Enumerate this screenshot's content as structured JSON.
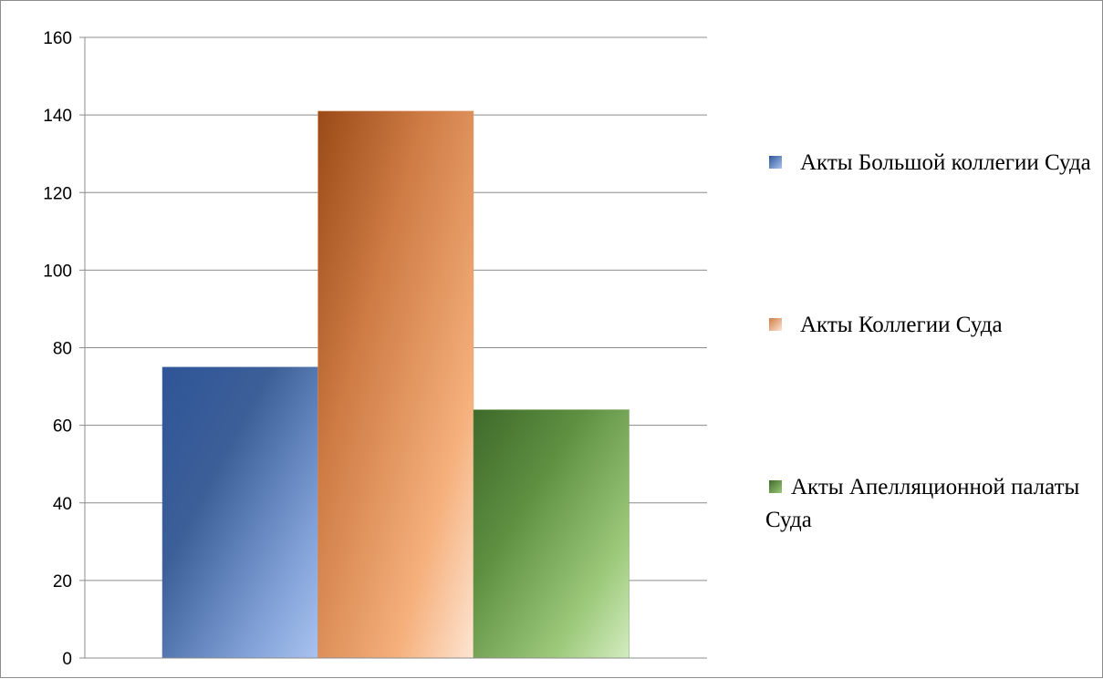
{
  "chart_data": {
    "type": "bar",
    "title": "",
    "xlabel": "",
    "ylabel": "",
    "ylim": [
      0,
      160
    ],
    "yticks": [
      0,
      20,
      40,
      60,
      80,
      100,
      120,
      140,
      160
    ],
    "ytick_labels": [
      "0",
      "20",
      "40",
      "60",
      "80",
      "100",
      "120",
      "140",
      "160"
    ],
    "grid": true,
    "legend_position": "right",
    "categories": [
      ""
    ],
    "series": [
      {
        "name": "Акты Большой коллегии Суда",
        "values": [
          75
        ],
        "color": "#4a6fb0"
      },
      {
        "name": "Акты Коллегии Суда",
        "values": [
          141
        ],
        "color": "#e59a63"
      },
      {
        "name": "Акты Апелляционной палаты Суда",
        "values": [
          64
        ],
        "color": "#6b9a4a"
      }
    ]
  }
}
